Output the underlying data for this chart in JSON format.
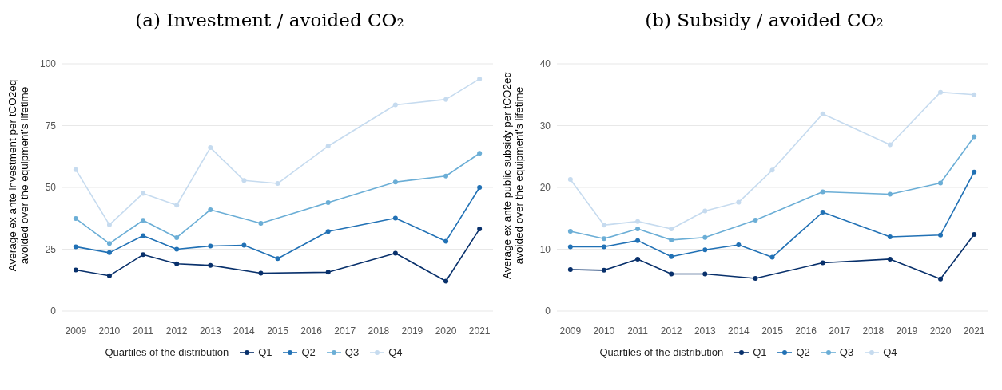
{
  "chart_data": [
    {
      "type": "line",
      "title": "(a) Investment / avoided CO₂",
      "ylabel": "Average ex ante investment per tCO2eq\navoided over the equipment's lifetime",
      "legend_title": "Quartiles of the distribution",
      "xlim": [
        2008.6,
        2021.4
      ],
      "xticks": [
        2009,
        2010,
        2011,
        2012,
        2013,
        2014,
        2015,
        2016,
        2017,
        2018,
        2019,
        2020,
        2021
      ],
      "ylim": [
        0,
        100
      ],
      "yticks": [
        0,
        25,
        50,
        75,
        100
      ],
      "grid": "y",
      "legend": "bottom",
      "marker": "circle",
      "line_style": "solid",
      "series": [
        {
          "name": "Q1",
          "color": "#08306b",
          "x": [
            2009,
            2010,
            2011,
            2012,
            2013,
            2014.5,
            2016.5,
            2018.5,
            2020,
            2021
          ],
          "values": [
            16.6,
            14.3,
            22.8,
            19.1,
            18.5,
            15.3,
            15.7,
            23.4,
            12.1,
            33.2
          ]
        },
        {
          "name": "Q2",
          "color": "#2171b5",
          "x": [
            2009,
            2010,
            2011,
            2012,
            2013,
            2014,
            2015,
            2016.5,
            2018.5,
            2020,
            2021
          ],
          "values": [
            26.0,
            23.6,
            30.5,
            25.0,
            26.3,
            26.6,
            21.2,
            32.2,
            37.6,
            28.2,
            50.0
          ]
        },
        {
          "name": "Q3",
          "color": "#6baed6",
          "x": [
            2009,
            2010,
            2011,
            2012,
            2013,
            2014.5,
            2016.5,
            2018.5,
            2020,
            2021
          ],
          "values": [
            37.4,
            27.3,
            36.7,
            29.7,
            41.0,
            35.5,
            43.9,
            52.2,
            54.6,
            63.8
          ]
        },
        {
          "name": "Q4",
          "color": "#c6dbef",
          "x": [
            2009,
            2010,
            2011,
            2012,
            2013,
            2014,
            2015,
            2016.5,
            2018.5,
            2020,
            2021
          ],
          "values": [
            57.2,
            34.9,
            47.6,
            42.8,
            66.1,
            52.8,
            51.6,
            66.7,
            83.4,
            85.6,
            93.9
          ]
        }
      ]
    },
    {
      "type": "line",
      "title": "(b) Subsidy / avoided CO₂",
      "ylabel": "Average ex ante public subsidy per tCO2eq\navoided over the equipment's lifetime",
      "legend_title": "Quartiles of the distribution",
      "xlim": [
        2008.6,
        2021.4
      ],
      "xticks": [
        2009,
        2010,
        2011,
        2012,
        2013,
        2014,
        2015,
        2016,
        2017,
        2018,
        2019,
        2020,
        2021
      ],
      "ylim": [
        0,
        40
      ],
      "yticks": [
        0,
        10,
        20,
        30,
        40
      ],
      "grid": "y",
      "legend": "bottom",
      "marker": "circle",
      "line_style": "solid",
      "series": [
        {
          "name": "Q1",
          "color": "#08306b",
          "x": [
            2009,
            2010,
            2011,
            2012,
            2013,
            2014.5,
            2016.5,
            2018.5,
            2020,
            2021
          ],
          "values": [
            6.7,
            6.6,
            8.4,
            6.0,
            6.0,
            5.3,
            7.8,
            8.4,
            5.2,
            12.4
          ]
        },
        {
          "name": "Q2",
          "color": "#2171b5",
          "x": [
            2009,
            2010,
            2011,
            2012,
            2013,
            2014,
            2015,
            2016.5,
            2018.5,
            2020,
            2021
          ],
          "values": [
            10.4,
            10.4,
            11.4,
            8.8,
            9.9,
            10.7,
            8.7,
            16.0,
            12.0,
            12.3,
            22.5
          ]
        },
        {
          "name": "Q3",
          "color": "#6baed6",
          "x": [
            2009,
            2010,
            2011,
            2012,
            2013,
            2014.5,
            2016.5,
            2018.5,
            2020,
            2021
          ],
          "values": [
            12.9,
            11.7,
            13.3,
            11.5,
            11.9,
            14.7,
            19.3,
            18.9,
            20.7,
            28.2
          ]
        },
        {
          "name": "Q4",
          "color": "#c6dbef",
          "x": [
            2009,
            2010,
            2011,
            2012,
            2013,
            2014,
            2015,
            2016.5,
            2018.5,
            2020,
            2021
          ],
          "values": [
            21.3,
            13.9,
            14.5,
            13.3,
            16.2,
            17.6,
            22.8,
            31.9,
            26.9,
            35.4,
            35.0
          ]
        }
      ]
    }
  ]
}
